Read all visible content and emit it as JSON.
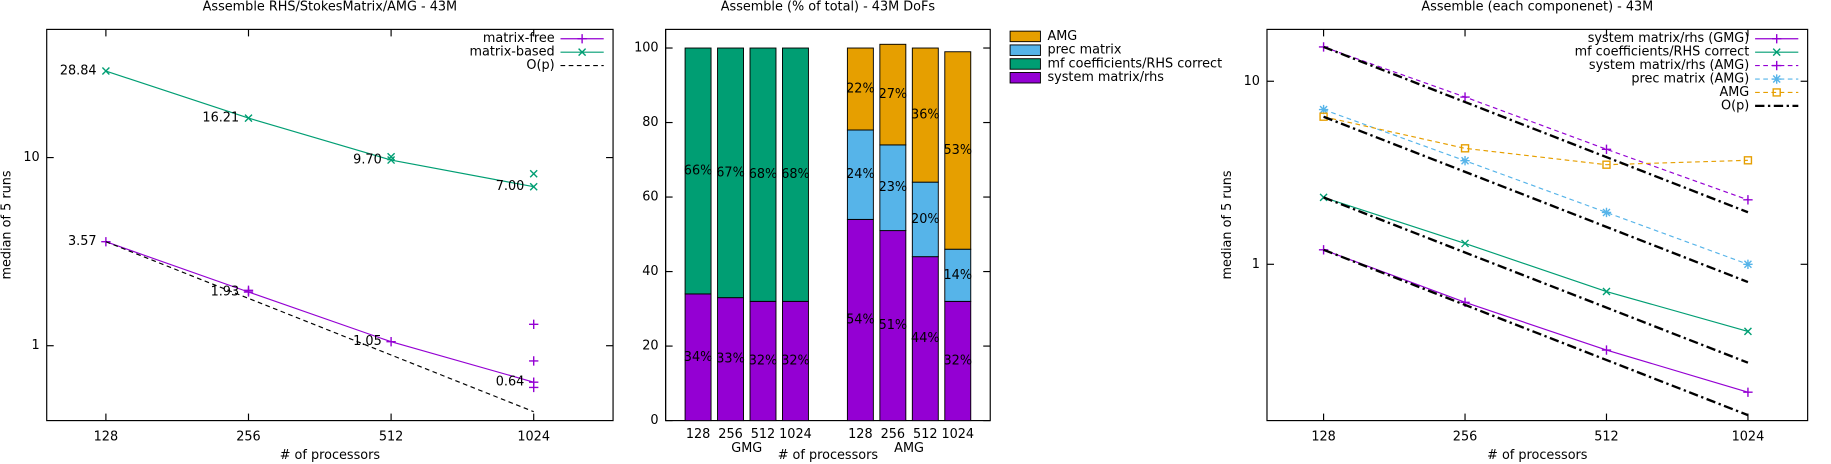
{
  "chart_data": [
    {
      "type": "line",
      "title": "Assemble RHS/StokesMatrix/AMG - 43M",
      "xlabel": "# of processors",
      "ylabel": "median of 5 runs",
      "x": [
        128,
        256,
        512,
        1024
      ],
      "xlog": true,
      "ylog": true,
      "xlim": [
        96,
        1506
      ],
      "ylim": [
        0.4,
        48
      ],
      "xticks": [
        128,
        256,
        512,
        1024
      ],
      "yticks": [
        1,
        10
      ],
      "legend": "top-right",
      "series": [
        {
          "name": "matrix-free",
          "color": "#9400d3",
          "marker": "plus",
          "values": [
            3.57,
            1.93,
            1.05,
            0.64
          ],
          "value_labels": [
            "3.57",
            "1.93",
            "1.05",
            "0.64"
          ],
          "runs": [
            [
              3.57
            ],
            [
              1.97,
              1.93
            ],
            [
              1.05
            ],
            [
              1.3,
              0.83,
              0.64,
              0.6
            ]
          ]
        },
        {
          "name": "matrix-based",
          "color": "#009e73",
          "marker": "cross",
          "values": [
            28.84,
            16.21,
            9.7,
            7
          ],
          "value_labels": [
            "28.84",
            "16.21",
            "9.70",
            "7.00"
          ],
          "runs": [
            [
              28.84
            ],
            [
              16.21
            ],
            [
              10.1,
              9.7
            ],
            [
              8.2,
              7
            ]
          ]
        },
        {
          "name": "O(p)",
          "color": "#000000",
          "dash": "dashed",
          "values": [
            3.57,
            1.785,
            0.8925,
            0.446
          ]
        }
      ]
    },
    {
      "type": "bar",
      "stacked": true,
      "title": "Assemble (% of total) - 43M DoFs",
      "xlabel": "# of processors",
      "categories": [
        "128",
        "256",
        "512",
        "1024",
        null,
        "128",
        "256",
        "512",
        "1024"
      ],
      "groups": [
        "GMG",
        "AMG"
      ],
      "ylim": [
        0,
        105
      ],
      "yticks": [
        0,
        20,
        40,
        60,
        80,
        100
      ],
      "legend": "outside-right",
      "series": [
        {
          "name": "system matrix/rhs",
          "color": "#9400d3",
          "values": [
            34,
            33,
            32,
            32,
            null,
            54,
            51,
            44,
            32
          ],
          "value_labels": [
            "34%",
            "33%",
            "32%",
            "32%",
            null,
            "54%",
            "51%",
            "44%",
            "32%"
          ]
        },
        {
          "name": "mf coefficients/RHS correct",
          "color": "#009e73",
          "values": [
            66,
            67,
            68,
            68,
            null,
            null,
            null,
            null,
            null
          ],
          "value_labels": [
            "66%",
            "67%",
            "68%",
            "68%",
            null,
            null,
            null,
            null,
            null
          ]
        },
        {
          "name": "prec matrix",
          "color": "#56b4e9",
          "values": [
            null,
            null,
            null,
            null,
            null,
            24,
            23,
            20,
            14
          ],
          "value_labels": [
            null,
            null,
            null,
            null,
            null,
            "24%",
            "23%",
            "20%",
            "14%"
          ]
        },
        {
          "name": "AMG",
          "color": "#e69f00",
          "values": [
            null,
            null,
            null,
            null,
            null,
            22,
            27,
            36,
            53
          ],
          "value_labels": [
            null,
            null,
            null,
            null,
            null,
            "22%",
            "27%",
            "36%",
            "53%"
          ]
        }
      ]
    },
    {
      "type": "line",
      "title": "Assemble (each componenet) - 43M",
      "xlabel": "# of processors",
      "ylabel": "median of 5 runs",
      "x": [
        128,
        256,
        512,
        1024
      ],
      "xlog": true,
      "ylog": true,
      "xlim": [
        97,
        1372
      ],
      "ylim": [
        0.14,
        19.2
      ],
      "xticks": [
        128,
        256,
        512,
        1024
      ],
      "yticks": [
        1,
        10
      ],
      "legend": "top-right",
      "series": [
        {
          "name": "system matrix/rhs (GMG)",
          "color": "#9400d3",
          "marker": "plus",
          "values": [
            1.2,
            0.62,
            0.34,
            0.2
          ]
        },
        {
          "name": "mf coefficients/RHS correct",
          "color": "#009e73",
          "marker": "cross",
          "values": [
            2.32,
            1.3,
            0.71,
            0.43
          ]
        },
        {
          "name": "system matrix/rhs (AMG)",
          "color": "#9400d3",
          "marker": "plus",
          "dash": "dashed",
          "values": [
            15.4,
            8.2,
            4.25,
            2.25
          ]
        },
        {
          "name": "prec matrix (AMG)",
          "color": "#56b4e9",
          "marker": "star",
          "dash": "dashed",
          "values": [
            7,
            3.68,
            1.92,
            1
          ]
        },
        {
          "name": "AMG",
          "color": "#e69f00",
          "marker": "square",
          "dash": "dashed",
          "values": [
            6.4,
            4.3,
            3.5,
            3.7
          ]
        },
        {
          "name": "O(p)",
          "color": "#000000",
          "dash": "dashdot",
          "linewidth": 2,
          "x": [
            128,
            1024
          ],
          "values": [
            [
              15.4,
              1.925
            ],
            [
              6.4,
              0.8
            ],
            [
              2.32,
              0.29
            ],
            [
              1.2,
              0.15
            ]
          ]
        }
      ]
    }
  ]
}
